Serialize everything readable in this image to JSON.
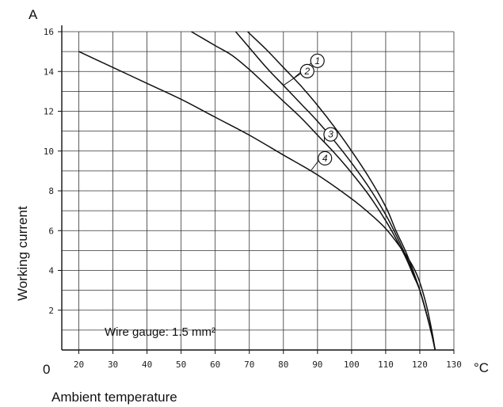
{
  "chart_data": {
    "type": "line",
    "xlabel": "Ambient temperature",
    "ylabel": "Working current",
    "x_unit": "°C",
    "y_unit": "A",
    "origin_label": "0",
    "annotation": "Wire gauge: 1.5 mm²",
    "xlim": [
      15,
      130
    ],
    "ylim": [
      0,
      16
    ],
    "x_ticks": [
      20,
      30,
      40,
      50,
      60,
      70,
      80,
      90,
      100,
      110,
      120,
      130
    ],
    "y_ticks": [
      2,
      4,
      6,
      8,
      10,
      12,
      14,
      16
    ],
    "grid": true,
    "series": [
      {
        "name": "1",
        "x": [
          69.5,
          75,
          80,
          85,
          90,
          95,
          100,
          105,
          110,
          113,
          116,
          118,
          120,
          122,
          123.5,
          124.5
        ],
        "y": [
          16,
          15.1,
          14.2,
          13.3,
          12.3,
          11.2,
          10.0,
          8.7,
          7.2,
          6.0,
          4.9,
          4.0,
          3.0,
          1.8,
          0.8,
          0
        ]
      },
      {
        "name": "2",
        "x": [
          66,
          70,
          75,
          80,
          85,
          90,
          95,
          100,
          105,
          110,
          113,
          116,
          118,
          120,
          122,
          123.5,
          124.5
        ],
        "y": [
          16,
          15.2,
          14.2,
          13.3,
          12.4,
          11.5,
          10.5,
          9.4,
          8.2,
          6.8,
          5.8,
          4.7,
          3.9,
          3.0,
          1.8,
          0.8,
          0
        ]
      },
      {
        "name": "3",
        "x": [
          53,
          60,
          65,
          70,
          75,
          80,
          85,
          90,
          95,
          100,
          105,
          110,
          113,
          116,
          118,
          120,
          122,
          123.5,
          124.5
        ],
        "y": [
          16,
          15.3,
          14.8,
          14.1,
          13.3,
          12.5,
          11.7,
          10.8,
          9.9,
          8.9,
          7.8,
          6.5,
          5.6,
          4.6,
          3.8,
          3.0,
          1.8,
          0.8,
          0
        ]
      },
      {
        "name": "4",
        "x": [
          20,
          30,
          40,
          50,
          60,
          70,
          80,
          90,
          100,
          105,
          110,
          115,
          118,
          120,
          122,
          123.5,
          124.5
        ],
        "y": [
          15.0,
          14.2,
          13.4,
          12.6,
          11.7,
          10.8,
          9.8,
          8.8,
          7.6,
          6.9,
          6.1,
          5.0,
          4.2,
          3.4,
          2.2,
          1.0,
          0
        ]
      }
    ]
  }
}
